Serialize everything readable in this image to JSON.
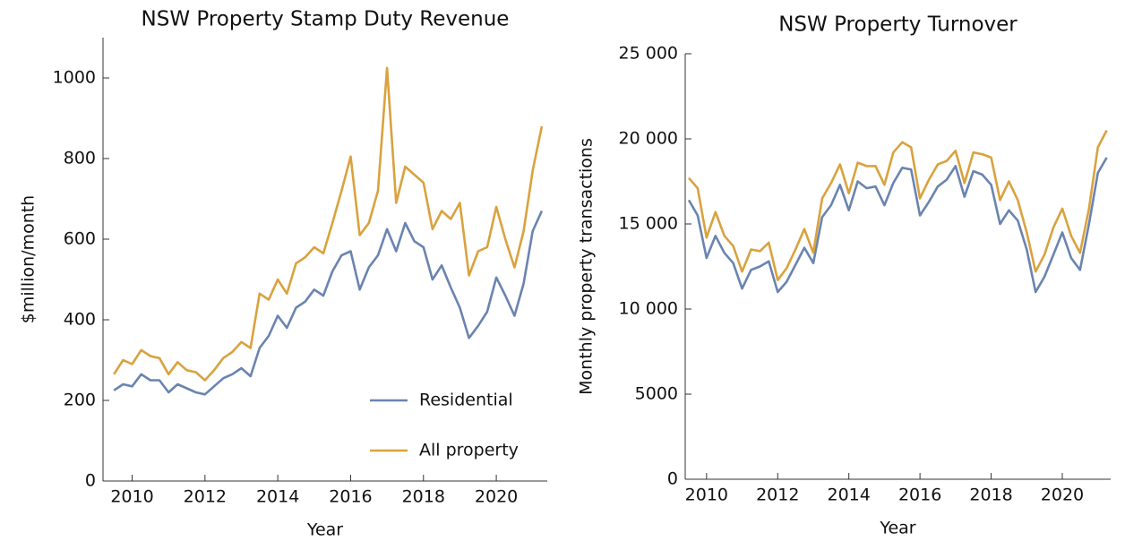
{
  "chart_data": [
    {
      "type": "line",
      "title": "NSW Property Stamp Duty Revenue",
      "x_label": "Year",
      "y_label": "$million/month",
      "x": [
        2009.5,
        2009.75,
        2010,
        2010.25,
        2010.5,
        2010.75,
        2011,
        2011.25,
        2011.5,
        2011.75,
        2012,
        2012.25,
        2012.5,
        2012.75,
        2013,
        2013.25,
        2013.5,
        2013.75,
        2014,
        2014.25,
        2014.5,
        2014.75,
        2015,
        2015.25,
        2015.5,
        2015.75,
        2016,
        2016.25,
        2016.5,
        2016.75,
        2017,
        2017.25,
        2017.5,
        2017.75,
        2018,
        2018.25,
        2018.5,
        2018.75,
        2019,
        2019.25,
        2019.5,
        2019.75,
        2020,
        2020.25,
        2020.5,
        2020.75,
        2021,
        2021.25
      ],
      "series": [
        {
          "name": "Residential",
          "color": "#6a84b0",
          "values": [
            225,
            240,
            235,
            265,
            250,
            250,
            220,
            240,
            230,
            220,
            215,
            235,
            255,
            265,
            280,
            260,
            330,
            360,
            410,
            380,
            430,
            445,
            475,
            460,
            520,
            560,
            570,
            475,
            530,
            560,
            625,
            570,
            640,
            595,
            580,
            500,
            535,
            480,
            430,
            355,
            385,
            420,
            505,
            460,
            410,
            490,
            620,
            670
          ]
        },
        {
          "name": "All property",
          "color": "#d9a23e",
          "values": [
            265,
            300,
            290,
            325,
            310,
            305,
            265,
            295,
            275,
            270,
            250,
            275,
            305,
            320,
            345,
            330,
            465,
            450,
            500,
            465,
            540,
            555,
            580,
            565,
            640,
            720,
            805,
            610,
            640,
            720,
            1025,
            690,
            780,
            760,
            740,
            625,
            670,
            650,
            690,
            510,
            570,
            580,
            680,
            600,
            530,
            620,
            770,
            880
          ]
        }
      ],
      "xlim": [
        2009.2,
        2021.4
      ],
      "xticks": [
        2010,
        2012,
        2014,
        2016,
        2018,
        2020
      ],
      "ylim": [
        0,
        1100
      ],
      "yticks": [
        0,
        200,
        400,
        600,
        800,
        1000
      ],
      "legend": "lower right"
    },
    {
      "type": "line",
      "title": "NSW Property Turnover",
      "x_label": "Year",
      "y_label": "Monthly property transactions",
      "x": [
        2009.5,
        2009.75,
        2010,
        2010.25,
        2010.5,
        2010.75,
        2011,
        2011.25,
        2011.5,
        2011.75,
        2012,
        2012.25,
        2012.5,
        2012.75,
        2013,
        2013.25,
        2013.5,
        2013.75,
        2014,
        2014.25,
        2014.5,
        2014.75,
        2015,
        2015.25,
        2015.5,
        2015.75,
        2016,
        2016.25,
        2016.5,
        2016.75,
        2017,
        2017.25,
        2017.5,
        2017.75,
        2018,
        2018.25,
        2018.5,
        2018.75,
        2019,
        2019.25,
        2019.5,
        2019.75,
        2020,
        2020.25,
        2020.5,
        2020.75,
        2021,
        2021.25
      ],
      "series": [
        {
          "color": "#6a84b0",
          "values": [
            16400,
            15500,
            13000,
            14300,
            13300,
            12700,
            11200,
            12300,
            12500,
            12800,
            11000,
            11600,
            12600,
            13600,
            12700,
            15400,
            16100,
            17300,
            15800,
            17500,
            17100,
            17200,
            16100,
            17400,
            18300,
            18200,
            15500,
            16300,
            17200,
            17600,
            18400,
            16600,
            18100,
            17900,
            17300,
            15000,
            15800,
            15200,
            13500,
            11000,
            11900,
            13200,
            14500,
            13000,
            12300,
            15000,
            18000,
            18900
          ]
        },
        {
          "color": "#d9a23e",
          "values": [
            17700,
            17100,
            14200,
            15700,
            14300,
            13700,
            12200,
            13500,
            13400,
            13900,
            11700,
            12400,
            13500,
            14700,
            13300,
            16500,
            17400,
            18500,
            16800,
            18600,
            18400,
            18400,
            17300,
            19200,
            19800,
            19500,
            16500,
            17600,
            18500,
            18700,
            19300,
            17400,
            19200,
            19100,
            18900,
            16400,
            17500,
            16400,
            14500,
            12200,
            13200,
            14800,
            15900,
            14300,
            13300,
            15900,
            19500,
            20500
          ]
        }
      ],
      "xlim": [
        2009.4,
        2021.36
      ],
      "xticks": [
        2010,
        2012,
        2014,
        2016,
        2018,
        2020
      ],
      "ylim": [
        0,
        25000
      ],
      "yticks": [
        0,
        5000,
        {
          "value": 10000,
          "label": "10 000"
        },
        {
          "value": 15000,
          "label": "15 000"
        },
        {
          "value": 20000,
          "label": "20 000"
        },
        {
          "value": 25000,
          "label": "25 000"
        }
      ]
    }
  ]
}
